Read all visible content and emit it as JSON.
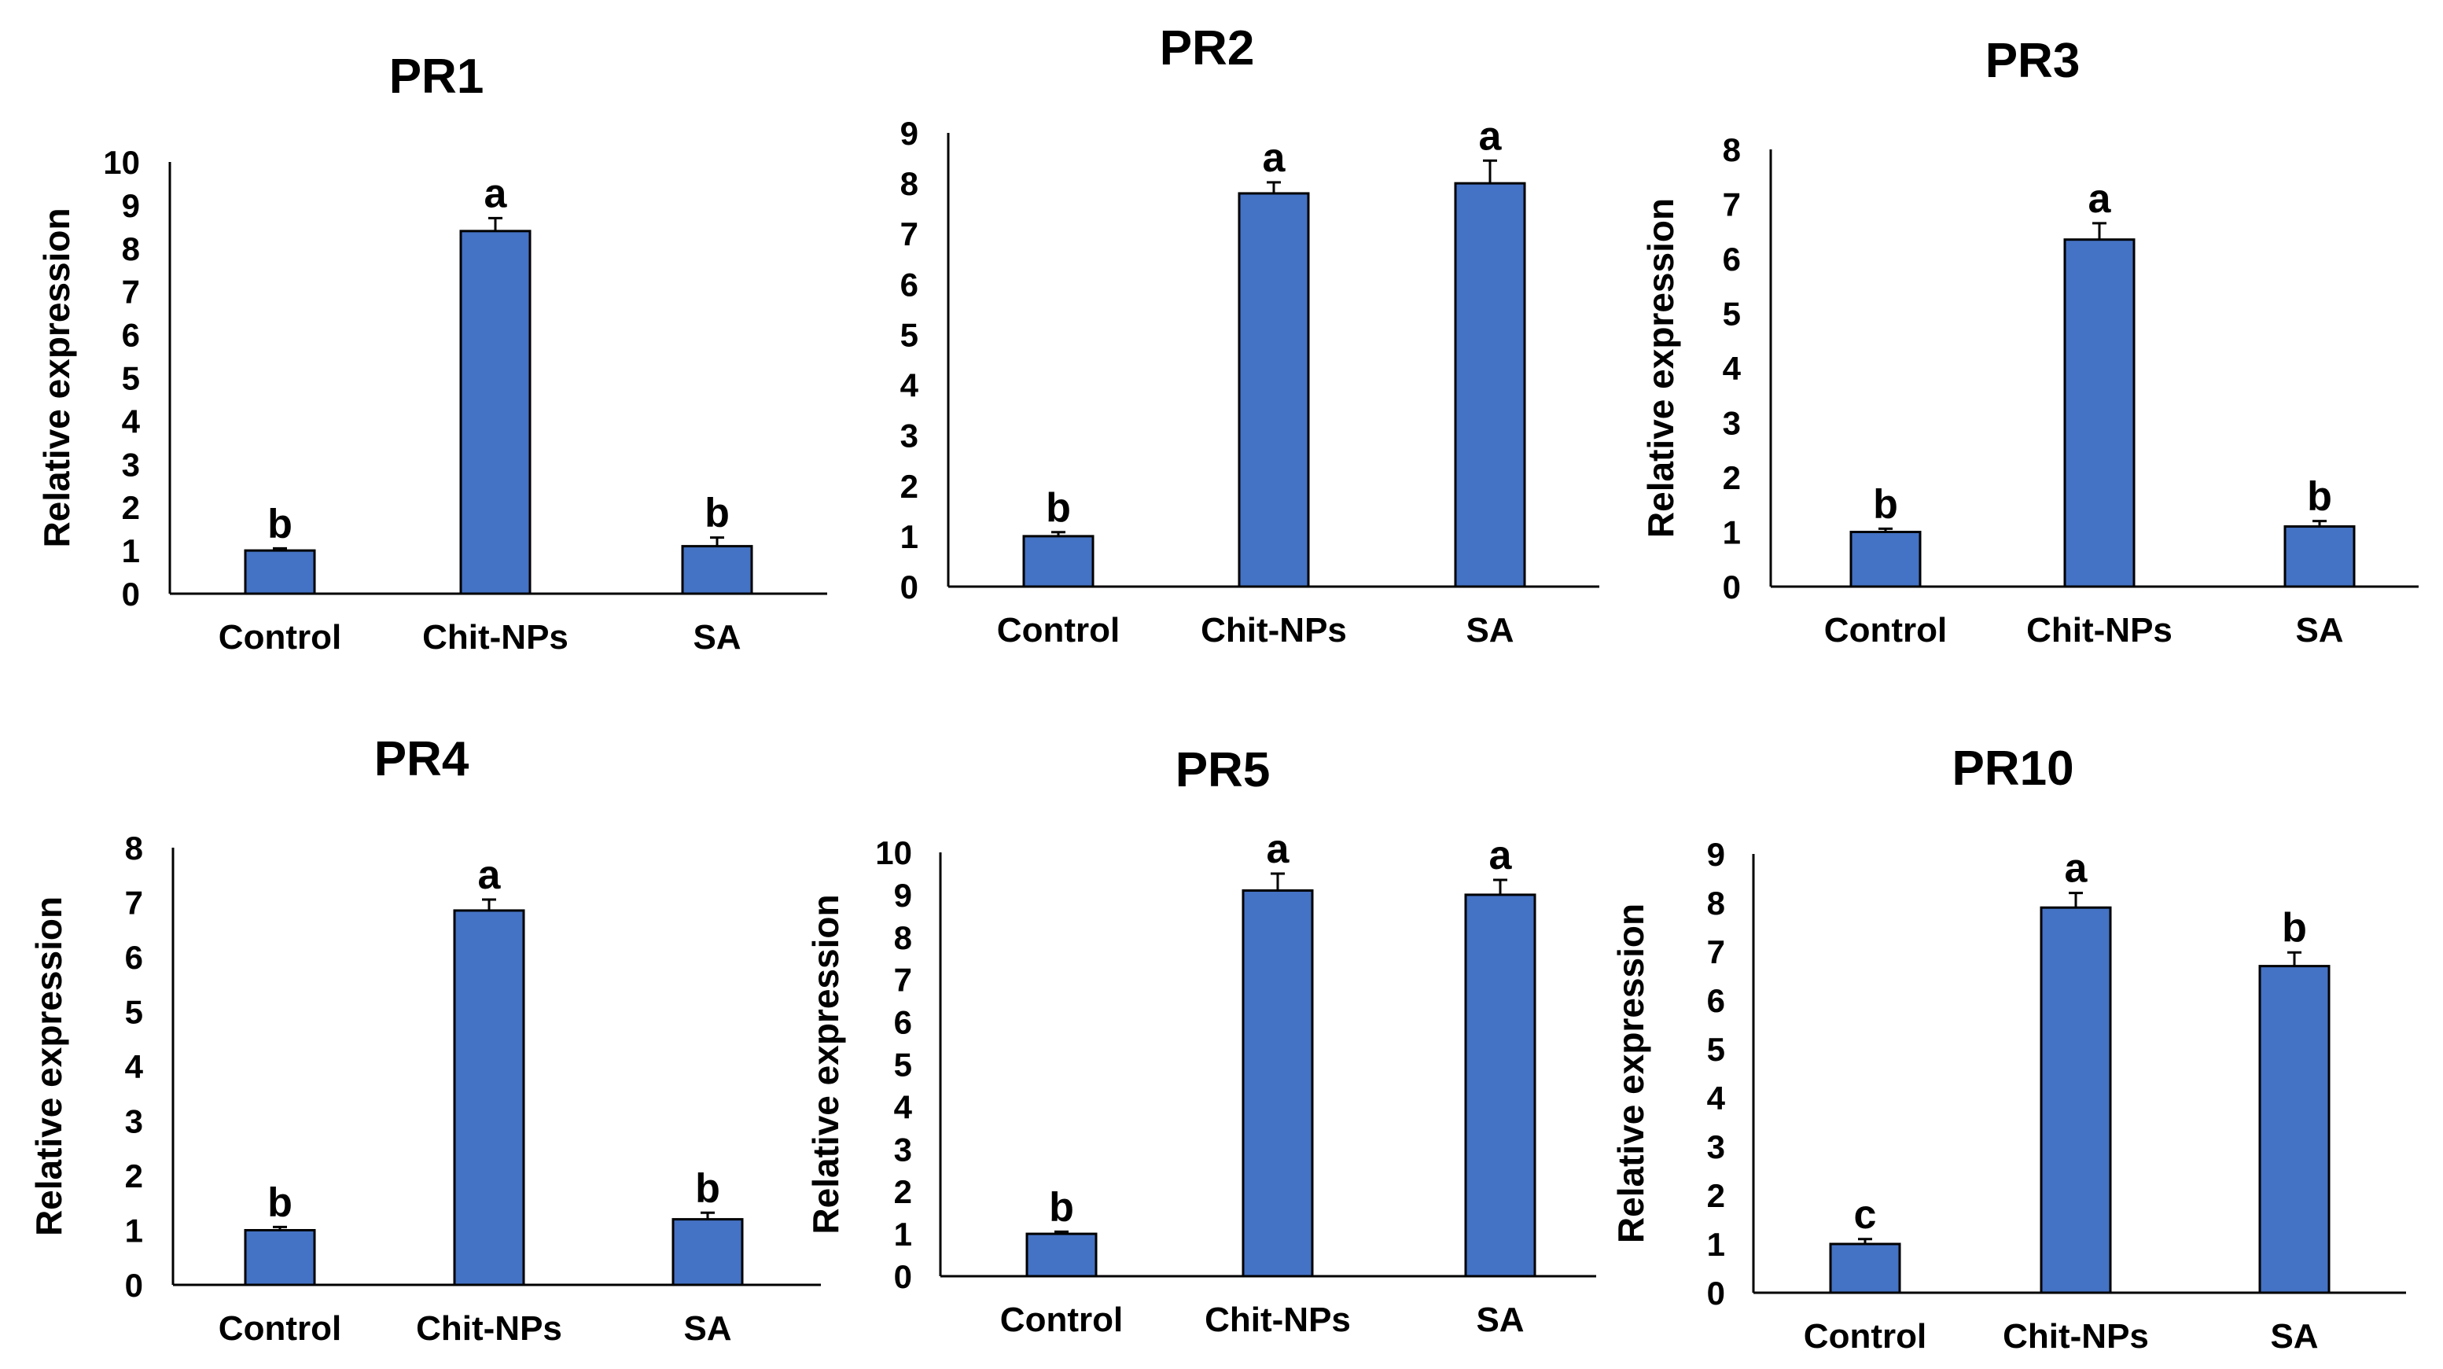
{
  "chart_data": [
    {
      "type": "bar",
      "title": "PR1",
      "ylabel": "Relative expression",
      "xlabel": "",
      "categories": [
        "Control",
        "Chit-NPs",
        "SA"
      ],
      "values": [
        1.0,
        8.4,
        1.1
      ],
      "errors": [
        0.05,
        0.3,
        0.2
      ],
      "significance": [
        "b",
        "a",
        "b"
      ],
      "ylim": [
        0,
        10
      ],
      "yticks": [
        "0",
        "1",
        "2",
        "3",
        "4",
        "5",
        "6",
        "7",
        "8",
        "9",
        "10"
      ],
      "bar_color": "#4472C4",
      "grid": false
    },
    {
      "type": "bar",
      "title": "PR2",
      "ylabel": "",
      "xlabel": "",
      "categories": [
        "Control",
        "Chit-NPs",
        "SA"
      ],
      "values": [
        1.0,
        7.8,
        8.0
      ],
      "errors": [
        0.08,
        0.22,
        0.45
      ],
      "significance": [
        "b",
        "a",
        "a"
      ],
      "ylim": [
        0,
        9
      ],
      "yticks": [
        "0",
        "1",
        "2",
        "3",
        "4",
        "5",
        "6",
        "7",
        "8",
        "9"
      ],
      "bar_color": "#4472C4",
      "grid": false
    },
    {
      "type": "bar",
      "title": "PR3",
      "ylabel": "Relative expression",
      "xlabel": "",
      "categories": [
        "Control",
        "Chit-NPs",
        "SA"
      ],
      "values": [
        1.0,
        6.35,
        1.1
      ],
      "errors": [
        0.06,
        0.3,
        0.1
      ],
      "significance": [
        "b",
        "a",
        "b"
      ],
      "ylim": [
        0,
        8
      ],
      "yticks": [
        "0",
        "1",
        "2",
        "3",
        "4",
        "5",
        "6",
        "7",
        "8"
      ],
      "bar_color": "#4472C4",
      "grid": false
    },
    {
      "type": "bar",
      "title": "PR4",
      "ylabel": "Relative expression",
      "xlabel": "",
      "categories": [
        "Control",
        "Chit-NPs",
        "SA"
      ],
      "values": [
        1.0,
        6.85,
        1.2
      ],
      "errors": [
        0.06,
        0.2,
        0.12
      ],
      "significance": [
        "b",
        "a",
        "b"
      ],
      "ylim": [
        0,
        8
      ],
      "yticks": [
        "0",
        "1",
        "2",
        "3",
        "4",
        "5",
        "6",
        "7",
        "8"
      ],
      "bar_color": "#4472C4",
      "grid": false
    },
    {
      "type": "bar",
      "title": "PR5",
      "ylabel": "Relative expression",
      "xlabel": "",
      "categories": [
        "Control",
        "Chit-NPs",
        "SA"
      ],
      "values": [
        1.0,
        9.1,
        9.0
      ],
      "errors": [
        0.05,
        0.4,
        0.35
      ],
      "significance": [
        "b",
        "a",
        "a"
      ],
      "ylim": [
        0,
        10
      ],
      "yticks": [
        "0",
        "1",
        "2",
        "3",
        "4",
        "5",
        "6",
        "7",
        "8",
        "9",
        "10"
      ],
      "bar_color": "#4472C4",
      "grid": false
    },
    {
      "type": "bar",
      "title": "PR10",
      "ylabel": "Relative expression",
      "xlabel": "",
      "categories": [
        "Control",
        "Chit-NPs",
        "SA"
      ],
      "values": [
        1.0,
        7.9,
        6.7
      ],
      "errors": [
        0.1,
        0.3,
        0.28
      ],
      "significance": [
        "c",
        "a",
        "b"
      ],
      "ylim": [
        0,
        9
      ],
      "yticks": [
        "0",
        "1",
        "2",
        "3",
        "4",
        "5",
        "6",
        "7",
        "8",
        "9"
      ],
      "bar_color": "#4472C4",
      "grid": false
    }
  ]
}
